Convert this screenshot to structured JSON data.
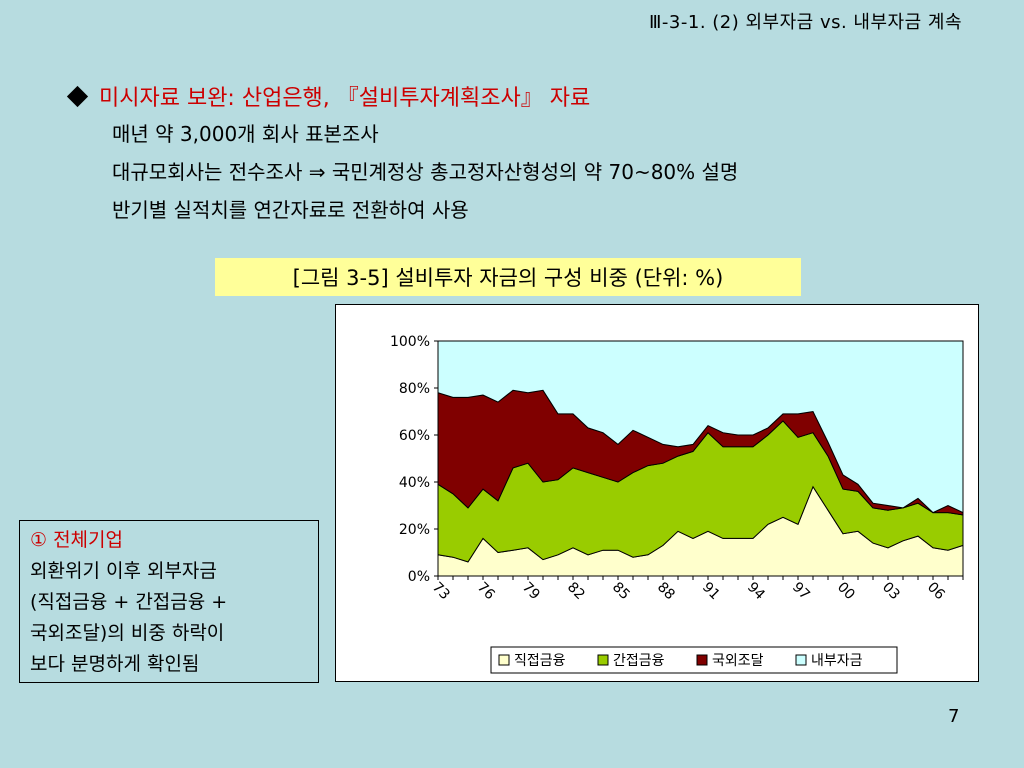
{
  "header": "Ⅲ-3-1. (2) 외부자금 vs. 내부자금 계속",
  "bullet": {
    "title": "미시자료 보완: 산업은행, 『설비투자계획조사』 자료",
    "lines": [
      "매년 약 3,000개 회사 표본조사",
      "대규모회사는 전수조사 ⇒ 국민계정상 총고정자산형성의 약 70~80% 설명",
      "반기별 실적치를 연간자료로 전환하여 사용"
    ]
  },
  "caption": "[그림 3-5] 설비투자 자금의 구성 비중 (단위: %)",
  "note": {
    "title": "① 전체기업",
    "lines": [
      "외환위기 이후 외부자금",
      "(직접금융 + 간접금융 +",
      "국외조달)의 비중 하락이",
      "보다 분명하게 확인됨"
    ]
  },
  "page_number": "7",
  "colors": {
    "direct": "#ffffcc",
    "indirect": "#99cc00",
    "foreign": "#800000",
    "internal": "#ccffff"
  },
  "chart_data": {
    "type": "area",
    "stacked": true,
    "x": [
      1973,
      1974,
      1975,
      1976,
      1977,
      1978,
      1979,
      1980,
      1981,
      1982,
      1983,
      1984,
      1985,
      1986,
      1987,
      1988,
      1989,
      1990,
      1991,
      1992,
      1993,
      1994,
      1995,
      1996,
      1997,
      1998,
      1999,
      2000,
      2001,
      2002,
      2003,
      2004,
      2005,
      2006,
      2007,
      2008
    ],
    "x_tick_labels": [
      "73",
      "76",
      "79",
      "82",
      "85",
      "88",
      "91",
      "94",
      "97",
      "00",
      "03",
      "06"
    ],
    "y_tick_labels": [
      "0%",
      "20%",
      "40%",
      "60%",
      "80%",
      "100%"
    ],
    "ylim": [
      0,
      100
    ],
    "series": [
      {
        "name": "직접금융",
        "values": [
          9,
          8,
          6,
          16,
          10,
          11,
          12,
          7,
          9,
          12,
          9,
          11,
          11,
          8,
          9,
          13,
          19,
          16,
          19,
          16,
          16,
          16,
          22,
          25,
          22,
          38,
          28,
          18,
          19,
          14,
          12,
          15,
          17,
          12,
          11,
          13
        ]
      },
      {
        "name": "간접금융",
        "values": [
          30,
          27,
          23,
          21,
          22,
          35,
          36,
          33,
          32,
          34,
          35,
          31,
          29,
          36,
          38,
          35,
          32,
          37,
          42,
          39,
          39,
          39,
          38,
          41,
          37,
          23,
          23,
          19,
          17,
          15,
          16,
          14,
          14,
          15,
          16,
          13
        ]
      },
      {
        "name": "국외조달",
        "values": [
          39,
          41,
          47,
          40,
          42,
          33,
          30,
          39,
          28,
          23,
          19,
          19,
          16,
          18,
          12,
          8,
          4,
          3,
          3,
          6,
          5,
          5,
          3,
          3,
          10,
          9,
          6,
          6,
          3,
          2,
          2,
          0,
          2,
          0,
          3,
          1
        ]
      },
      {
        "name": "내부자금",
        "values": [
          22,
          24,
          24,
          23,
          26,
          21,
          22,
          21,
          31,
          31,
          37,
          39,
          44,
          38,
          41,
          44,
          45,
          44,
          36,
          39,
          40,
          40,
          37,
          31,
          31,
          30,
          43,
          57,
          61,
          69,
          70,
          71,
          67,
          73,
          70,
          73
        ]
      }
    ],
    "legend_position": "bottom"
  }
}
